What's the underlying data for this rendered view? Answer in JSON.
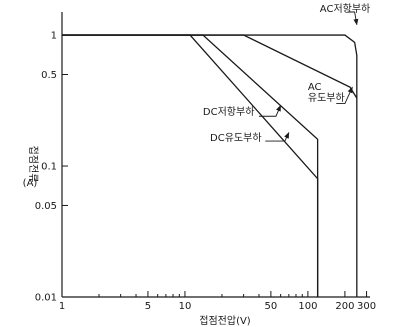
{
  "chart_data": {
    "type": "line",
    "title": "",
    "xlabel": "접점전압(V)",
    "ylabel": [
      "접점전류",
      "(A)"
    ],
    "xscale": "log",
    "yscale": "log",
    "xlim": [
      1,
      320
    ],
    "ylim": [
      0.01,
      1.5
    ],
    "grid": false,
    "x_tick_labels": [
      {
        "value": 1,
        "label": "1"
      },
      {
        "value": 5,
        "label": "5"
      },
      {
        "value": 10,
        "label": "10"
      },
      {
        "value": 50,
        "label": "50"
      },
      {
        "value": 100,
        "label": "100"
      },
      {
        "value": 200,
        "label": "200"
      },
      {
        "value": 300,
        "label": "300"
      }
    ],
    "x_minor_ticks": [
      2,
      3,
      4,
      6,
      7,
      8,
      9,
      20,
      30,
      40,
      60,
      70,
      80,
      90
    ],
    "y_tick_labels": [
      {
        "value": 1,
        "label": "1"
      },
      {
        "value": 0.5,
        "label": "0.5"
      },
      {
        "value": 0.1,
        "label": "0.1"
      },
      {
        "value": 0.05,
        "label": "0.05"
      },
      {
        "value": 0.01,
        "label": "0.01"
      }
    ],
    "series": [
      {
        "name": "AC저항부하",
        "points": [
          [
            1,
            1
          ],
          [
            200,
            1
          ],
          [
            240,
            0.88
          ],
          [
            250,
            0.7
          ],
          [
            250,
            0.01
          ]
        ]
      },
      {
        "name": "AC 유도부하",
        "points": [
          [
            1,
            1
          ],
          [
            30,
            1
          ],
          [
            220,
            0.4
          ],
          [
            250,
            0.33
          ]
        ]
      },
      {
        "name": "DC저항부하",
        "points": [
          [
            1,
            1
          ],
          [
            14,
            1
          ],
          [
            120,
            0.16
          ],
          [
            120,
            0.01
          ]
        ]
      },
      {
        "name": "DC유도부하",
        "points": [
          [
            1,
            1
          ],
          [
            11,
            1
          ],
          [
            120,
            0.08
          ],
          [
            120,
            0.01
          ]
        ]
      }
    ],
    "annotations": [
      {
        "lines": [
          "AC저항부하"
        ],
        "text_at": [
          125,
          1.5
        ],
        "align": "start",
        "leader": [
          [
            210,
            1.5
          ],
          [
            240,
            1.5
          ],
          [
            250,
            1.2
          ]
        ]
      },
      {
        "lines": [
          "AC",
          "유도부하"
        ],
        "text_at": [
          100,
          0.38
        ],
        "align": "start",
        "leader": [
          [
            170,
            0.3
          ],
          [
            200,
            0.3
          ],
          [
            230,
            0.4
          ]
        ]
      },
      {
        "lines": [
          "DC저항부하"
        ],
        "text_at": [
          14,
          0.245
        ],
        "align": "start",
        "leader": [
          [
            40,
            0.24
          ],
          [
            55,
            0.24
          ],
          [
            60,
            0.29
          ]
        ]
      },
      {
        "lines": [
          "DC유도부하"
        ],
        "text_at": [
          16,
          0.155
        ],
        "align": "start",
        "leader": [
          [
            45,
            0.155
          ],
          [
            65,
            0.155
          ],
          [
            70,
            0.18
          ]
        ]
      }
    ]
  }
}
